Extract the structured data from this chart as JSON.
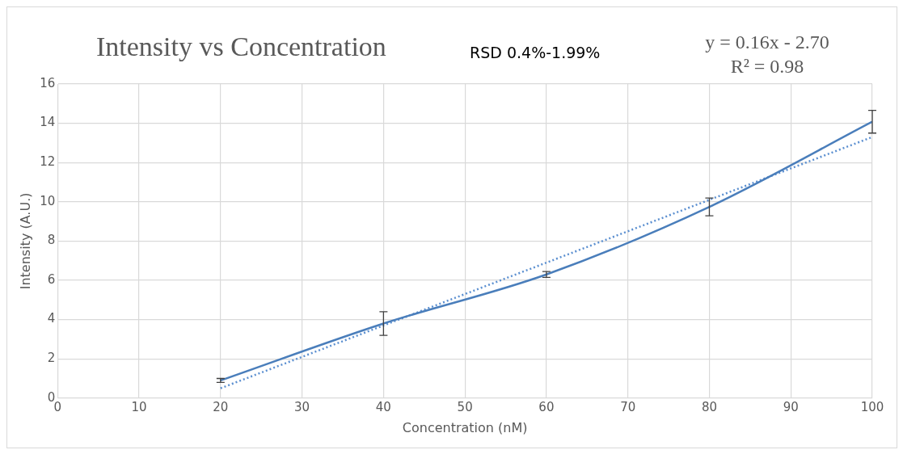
{
  "chart_data": {
    "type": "line",
    "title": "Intensity vs Concentration",
    "xlabel": "Concentration (nM)",
    "ylabel": "Intensity (A.U.)",
    "annotations": [
      "RSD 0.4%-1.99%",
      "y = 0.16x - 2.70",
      "R² = 0.98"
    ],
    "x": [
      20,
      40,
      60,
      80,
      100
    ],
    "series": [
      {
        "color": "#4a7ebb",
        "values": [
          0.9,
          3.8,
          6.3,
          9.74,
          14.08
        ],
        "errors": [
          0.1,
          0.6,
          0.15,
          0.45,
          0.58
        ],
        "line_style": "solid"
      },
      {
        "type": "line",
        "color": "#5b8fd0",
        "x": [
          20,
          100
        ],
        "values": [
          0.5,
          13.3
        ],
        "line_style": "dotted"
      }
    ],
    "xlim": [
      0,
      100
    ],
    "xticks": [
      0,
      10,
      20,
      30,
      40,
      50,
      60,
      70,
      80,
      90,
      100
    ],
    "ylim": [
      0,
      16
    ],
    "yticks": [
      0,
      2,
      4,
      6,
      8,
      10,
      12,
      14,
      16
    ],
    "grid": true,
    "legend": false,
    "marker": "none"
  }
}
